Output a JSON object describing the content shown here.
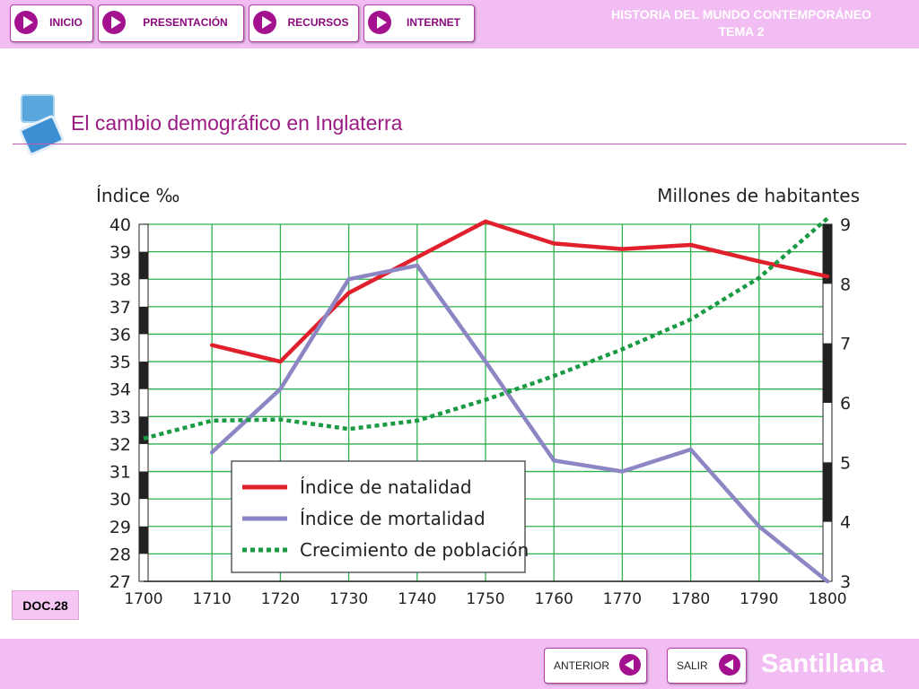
{
  "nav": {
    "inicio": "INICIO",
    "presentacion": "PRESENTACIÓN",
    "recursos": "RECURSOS",
    "internet": "INTERNET"
  },
  "header": {
    "line1": "HISTORIA DEL MUNDO CONTEMPORÁNEO",
    "line2": "TEMA 2"
  },
  "doc": {
    "title": "El cambio demográfico en Inglaterra",
    "badge": "DOC.28"
  },
  "footer": {
    "prev": "ANTERIOR",
    "exit": "SALIR",
    "brand": "Santillana"
  },
  "colors": {
    "accent": "#a3118f",
    "bar": "#f2bdf2",
    "natalidad": "#e0202c",
    "mortalidad": "#8c86c4",
    "poblacion": "#1a9a43",
    "grid": "#2fb04f"
  },
  "chart_data": {
    "type": "line",
    "title": "",
    "ylabel": "Índice ‰",
    "y2label": "Millones de habitantes",
    "x": [
      1700,
      1710,
      1720,
      1730,
      1740,
      1750,
      1760,
      1770,
      1780,
      1790,
      1800
    ],
    "xlim": [
      1700,
      1800
    ],
    "ylim": [
      27,
      40
    ],
    "y2lim": [
      3,
      9
    ],
    "yticks": [
      27,
      28,
      29,
      30,
      31,
      32,
      33,
      34,
      35,
      36,
      37,
      38,
      39,
      40
    ],
    "y2ticks": [
      3,
      4,
      5,
      6,
      7,
      8,
      9
    ],
    "grid": true,
    "legend_position": "bottom-center",
    "series": [
      {
        "name": "Índice de natalidad",
        "axis": "left",
        "style": "solid",
        "points": [
          [
            1710,
            35.6
          ],
          [
            1720,
            35.0
          ],
          [
            1730,
            37.5
          ],
          [
            1740,
            38.8
          ],
          [
            1750,
            40.1
          ],
          [
            1760,
            39.3
          ],
          [
            1770,
            39.1
          ],
          [
            1780,
            39.25
          ],
          [
            1790,
            38.65
          ],
          [
            1800,
            38.1
          ]
        ]
      },
      {
        "name": "Índice de mortalidad",
        "axis": "left",
        "style": "solid",
        "points": [
          [
            1710,
            31.7
          ],
          [
            1720,
            34.0
          ],
          [
            1730,
            38.0
          ],
          [
            1740,
            38.5
          ],
          [
            1750,
            35.0
          ],
          [
            1760,
            31.4
          ],
          [
            1770,
            31.0
          ],
          [
            1780,
            31.8
          ],
          [
            1790,
            29.0
          ],
          [
            1800,
            27.0
          ]
        ]
      },
      {
        "name": "Crecimiento de población",
        "axis": "right",
        "style": "dotted",
        "points": [
          [
            1700,
            5.4
          ],
          [
            1710,
            5.7
          ],
          [
            1720,
            5.72
          ],
          [
            1730,
            5.56
          ],
          [
            1740,
            5.7
          ],
          [
            1750,
            6.05
          ],
          [
            1760,
            6.45
          ],
          [
            1770,
            6.9
          ],
          [
            1780,
            7.4
          ],
          [
            1790,
            8.1
          ],
          [
            1800,
            9.1
          ]
        ]
      }
    ]
  }
}
